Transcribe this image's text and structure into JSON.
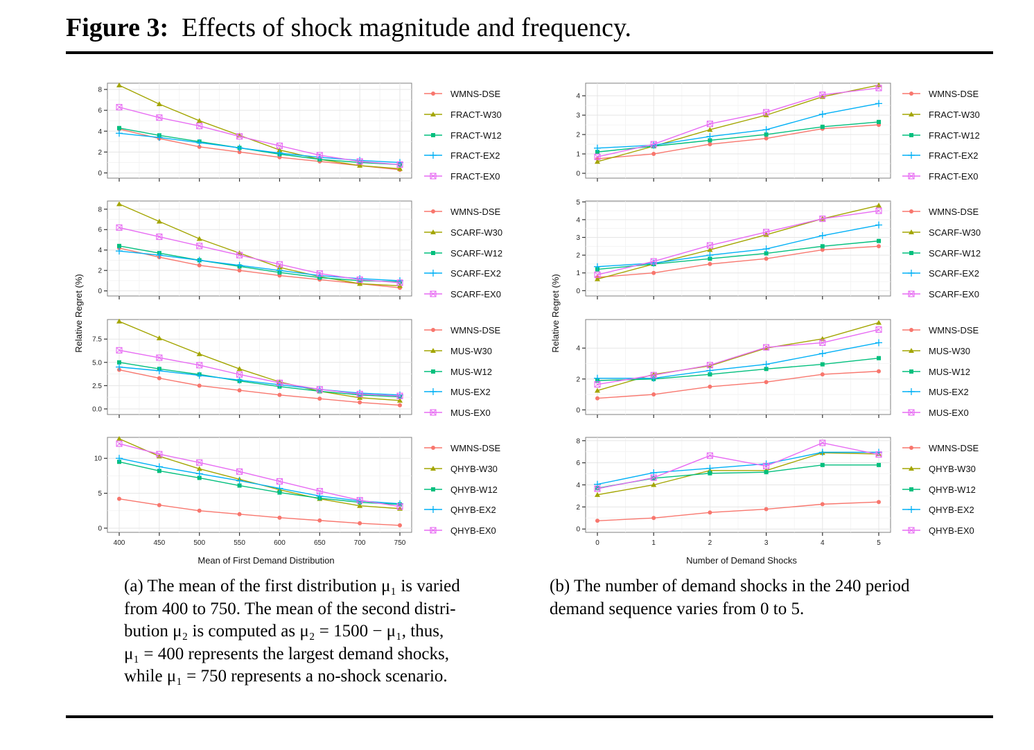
{
  "figure": {
    "label": "Figure 3:",
    "title": "Effects of shock magnitude and frequency."
  },
  "captions": {
    "a_lines": [
      "(a) The mean of the first distribution μ₁ is varied",
      "from 400 to 750. The mean of the second distri-",
      "bution μ₂ is computed as μ₂ = 1500 − μ₁, thus,",
      "μ₁ = 400 represents the largest demand shocks,",
      "while μ₁ = 750 represents a no-shock scenario."
    ],
    "b_lines": [
      "(b) The number of demand shocks in the 240 period",
      "demand sequence varies from 0 to 5."
    ]
  },
  "axes": {
    "left_ylabel": "Relative Regret (%)",
    "right_ylabel": "Relative Regret (%)",
    "left_xlabel": "Mean of First Demand Distribution",
    "right_xlabel": "Number of Demand Shocks"
  },
  "series_colors": {
    "WMNS-DSE": "#F8766D",
    "W30": "#A3A500",
    "W12": "#00BF7D",
    "EX2": "#00B0F6",
    "EX0": "#E76BF3"
  },
  "chart_data": [
    {
      "type": "line",
      "panel": "a",
      "row": 1,
      "x": [
        400,
        450,
        500,
        550,
        600,
        650,
        700,
        750
      ],
      "ylim": [
        -0.5,
        8.6
      ],
      "yticks": [
        0,
        2,
        4,
        6,
        8
      ],
      "ytick_labels": [
        "0",
        "2",
        "4",
        "6",
        "8"
      ],
      "series": [
        {
          "name": "WMNS-DSE",
          "key": "WMNS-DSE",
          "values": [
            4.2,
            3.3,
            2.5,
            2.0,
            1.5,
            1.1,
            0.7,
            0.3
          ]
        },
        {
          "name": "FRACT-W30",
          "key": "W30",
          "values": [
            8.4,
            6.6,
            5.0,
            3.6,
            2.2,
            1.3,
            0.7,
            0.4
          ]
        },
        {
          "name": "FRACT-W12",
          "key": "W12",
          "values": [
            4.3,
            3.6,
            3.0,
            2.4,
            1.8,
            1.3,
            1.0,
            0.8
          ]
        },
        {
          "name": "FRACT-EX2",
          "key": "EX2",
          "values": [
            3.8,
            3.4,
            2.9,
            2.4,
            1.9,
            1.5,
            1.2,
            1.0
          ]
        },
        {
          "name": "FRACT-EX0",
          "key": "EX0",
          "values": [
            6.3,
            5.3,
            4.5,
            3.5,
            2.6,
            1.7,
            1.1,
            0.8
          ]
        }
      ]
    },
    {
      "type": "line",
      "panel": "a",
      "row": 2,
      "x": [
        400,
        450,
        500,
        550,
        600,
        650,
        700,
        750
      ],
      "ylim": [
        -0.5,
        8.8
      ],
      "yticks": [
        0,
        2,
        4,
        6,
        8
      ],
      "ytick_labels": [
        "0",
        "2",
        "4",
        "6",
        "8"
      ],
      "series": [
        {
          "name": "WMNS-DSE",
          "key": "WMNS-DSE",
          "values": [
            4.2,
            3.3,
            2.5,
            2.0,
            1.5,
            1.1,
            0.7,
            0.3
          ]
        },
        {
          "name": "SCARF-W30",
          "key": "W30",
          "values": [
            8.5,
            6.8,
            5.1,
            3.7,
            2.3,
            1.4,
            0.7,
            0.5
          ]
        },
        {
          "name": "SCARF-W12",
          "key": "W12",
          "values": [
            4.4,
            3.7,
            3.0,
            2.4,
            1.8,
            1.3,
            1.0,
            0.9
          ]
        },
        {
          "name": "SCARF-EX2",
          "key": "EX2",
          "values": [
            3.9,
            3.5,
            3.0,
            2.5,
            2.0,
            1.5,
            1.2,
            1.0
          ]
        },
        {
          "name": "SCARF-EX0",
          "key": "EX0",
          "values": [
            6.2,
            5.3,
            4.4,
            3.5,
            2.6,
            1.7,
            1.1,
            0.8
          ]
        }
      ]
    },
    {
      "type": "line",
      "panel": "a",
      "row": 3,
      "x": [
        400,
        450,
        500,
        550,
        600,
        650,
        700,
        750
      ],
      "ylim": [
        -0.6,
        9.6
      ],
      "yticks": [
        0,
        2.5,
        5,
        7.5
      ],
      "ytick_labels": [
        "0.0",
        "2.5",
        "5.0",
        "7.5"
      ],
      "series": [
        {
          "name": "WMNS-DSE",
          "key": "WMNS-DSE",
          "values": [
            4.2,
            3.3,
            2.5,
            2.0,
            1.5,
            1.1,
            0.7,
            0.4
          ]
        },
        {
          "name": "MUS-W30",
          "key": "W30",
          "values": [
            9.4,
            7.6,
            5.9,
            4.3,
            2.9,
            1.9,
            1.2,
            0.9
          ]
        },
        {
          "name": "MUS-W12",
          "key": "W12",
          "values": [
            5.0,
            4.3,
            3.7,
            3.0,
            2.4,
            1.9,
            1.5,
            1.3
          ]
        },
        {
          "name": "MUS-EX2",
          "key": "EX2",
          "values": [
            4.5,
            4.1,
            3.6,
            3.1,
            2.6,
            2.1,
            1.7,
            1.5
          ]
        },
        {
          "name": "MUS-EX0",
          "key": "EX0",
          "values": [
            6.3,
            5.5,
            4.7,
            3.7,
            2.8,
            2.1,
            1.6,
            1.4
          ]
        }
      ]
    },
    {
      "type": "line",
      "panel": "a",
      "row": 4,
      "x": [
        400,
        450,
        500,
        550,
        600,
        650,
        700,
        750
      ],
      "ylim": [
        -0.6,
        13.0
      ],
      "yticks": [
        0,
        5,
        10
      ],
      "ytick_labels": [
        "0",
        "5",
        "10"
      ],
      "xtick_labels": [
        "400",
        "450",
        "500",
        "550",
        "600",
        "650",
        "700",
        "750"
      ],
      "series": [
        {
          "name": "WMNS-DSE",
          "key": "WMNS-DSE",
          "values": [
            4.2,
            3.3,
            2.5,
            2.0,
            1.5,
            1.1,
            0.7,
            0.4
          ]
        },
        {
          "name": "QHYB-W30",
          "key": "W30",
          "values": [
            12.8,
            10.3,
            8.5,
            7.0,
            5.5,
            4.2,
            3.2,
            2.8
          ]
        },
        {
          "name": "QHYB-W12",
          "key": "W12",
          "values": [
            9.5,
            8.2,
            7.2,
            6.1,
            5.1,
            4.3,
            3.7,
            3.4
          ]
        },
        {
          "name": "QHYB-EX2",
          "key": "EX2",
          "values": [
            10.0,
            8.8,
            7.8,
            6.8,
            5.7,
            4.6,
            3.9,
            3.5
          ]
        },
        {
          "name": "QHYB-EX0",
          "key": "EX0",
          "values": [
            12.1,
            10.6,
            9.4,
            8.1,
            6.7,
            5.3,
            4.0,
            3.1
          ]
        }
      ]
    },
    {
      "type": "line",
      "panel": "b",
      "row": 1,
      "x": [
        0,
        1,
        2,
        3,
        4,
        5
      ],
      "ylim": [
        -0.25,
        4.65
      ],
      "yticks": [
        0,
        1,
        2,
        3,
        4
      ],
      "ytick_labels": [
        "0",
        "1",
        "2",
        "3",
        "4"
      ],
      "series": [
        {
          "name": "WMNS-DSE",
          "key": "WMNS-DSE",
          "values": [
            0.75,
            1.0,
            1.5,
            1.8,
            2.3,
            2.5
          ]
        },
        {
          "name": "FRACT-W30",
          "key": "W30",
          "values": [
            0.6,
            1.4,
            2.25,
            3.0,
            3.95,
            4.55
          ]
        },
        {
          "name": "FRACT-W12",
          "key": "W12",
          "values": [
            1.1,
            1.4,
            1.7,
            2.0,
            2.4,
            2.65
          ]
        },
        {
          "name": "FRACT-EX2",
          "key": "EX2",
          "values": [
            1.3,
            1.45,
            1.9,
            2.25,
            3.05,
            3.6
          ]
        },
        {
          "name": "FRACT-EX0",
          "key": "EX0",
          "values": [
            0.85,
            1.5,
            2.55,
            3.15,
            4.05,
            4.4
          ]
        }
      ]
    },
    {
      "type": "line",
      "panel": "b",
      "row": 2,
      "x": [
        0,
        1,
        2,
        3,
        4,
        5
      ],
      "ylim": [
        -0.3,
        5.05
      ],
      "yticks": [
        0,
        1,
        2,
        3,
        4,
        5
      ],
      "ytick_labels": [
        "0",
        "1",
        "2",
        "3",
        "4",
        "5"
      ],
      "series": [
        {
          "name": "WMNS-DSE",
          "key": "WMNS-DSE",
          "values": [
            0.75,
            1.0,
            1.5,
            1.8,
            2.3,
            2.5
          ]
        },
        {
          "name": "SCARF-W30",
          "key": "W30",
          "values": [
            0.65,
            1.5,
            2.3,
            3.15,
            4.05,
            4.8
          ]
        },
        {
          "name": "SCARF-W12",
          "key": "W12",
          "values": [
            1.2,
            1.5,
            1.8,
            2.1,
            2.5,
            2.8
          ]
        },
        {
          "name": "SCARF-EX2",
          "key": "EX2",
          "values": [
            1.35,
            1.55,
            2.0,
            2.35,
            3.1,
            3.7
          ]
        },
        {
          "name": "SCARF-EX0",
          "key": "EX0",
          "values": [
            0.9,
            1.65,
            2.55,
            3.3,
            4.05,
            4.5
          ]
        }
      ]
    },
    {
      "type": "line",
      "panel": "b",
      "row": 3,
      "x": [
        0,
        1,
        2,
        3,
        4,
        5
      ],
      "ylim": [
        -0.3,
        5.85
      ],
      "yticks": [
        0,
        2,
        4
      ],
      "ytick_labels": [
        "0",
        "2",
        "4"
      ],
      "series": [
        {
          "name": "WMNS-DSE",
          "key": "WMNS-DSE",
          "values": [
            0.75,
            1.0,
            1.5,
            1.8,
            2.3,
            2.5
          ]
        },
        {
          "name": "MUS-W30",
          "key": "W30",
          "values": [
            1.25,
            2.3,
            2.85,
            4.0,
            4.6,
            5.65
          ]
        },
        {
          "name": "MUS-W12",
          "key": "W12",
          "values": [
            1.9,
            2.0,
            2.3,
            2.65,
            2.95,
            3.35
          ]
        },
        {
          "name": "MUS-EX2",
          "key": "EX2",
          "values": [
            2.05,
            2.05,
            2.55,
            2.95,
            3.65,
            4.35
          ]
        },
        {
          "name": "MUS-EX0",
          "key": "EX0",
          "values": [
            1.65,
            2.25,
            2.9,
            4.05,
            4.35,
            5.2
          ]
        }
      ]
    },
    {
      "type": "line",
      "panel": "b",
      "row": 4,
      "x": [
        0,
        1,
        2,
        3,
        4,
        5
      ],
      "ylim": [
        -0.3,
        8.3
      ],
      "yticks": [
        0,
        2,
        4,
        6,
        8
      ],
      "ytick_labels": [
        "0",
        "2",
        "4",
        "6",
        "8"
      ],
      "xtick_labels": [
        "0",
        "1",
        "2",
        "3",
        "4",
        "5"
      ],
      "series": [
        {
          "name": "WMNS-DSE",
          "key": "WMNS-DSE",
          "values": [
            0.75,
            1.0,
            1.5,
            1.8,
            2.25,
            2.45
          ]
        },
        {
          "name": "QHYB-W30",
          "key": "W30",
          "values": [
            3.1,
            4.0,
            5.3,
            5.3,
            6.9,
            6.8
          ]
        },
        {
          "name": "QHYB-W12",
          "key": "W12",
          "values": [
            3.7,
            4.6,
            5.05,
            5.15,
            5.8,
            5.8
          ]
        },
        {
          "name": "QHYB-EX2",
          "key": "EX2",
          "values": [
            4.05,
            5.1,
            5.5,
            5.9,
            6.95,
            6.95
          ]
        },
        {
          "name": "QHYB-EX0",
          "key": "EX0",
          "values": [
            3.65,
            4.65,
            6.65,
            5.7,
            7.8,
            6.75
          ]
        }
      ]
    }
  ]
}
